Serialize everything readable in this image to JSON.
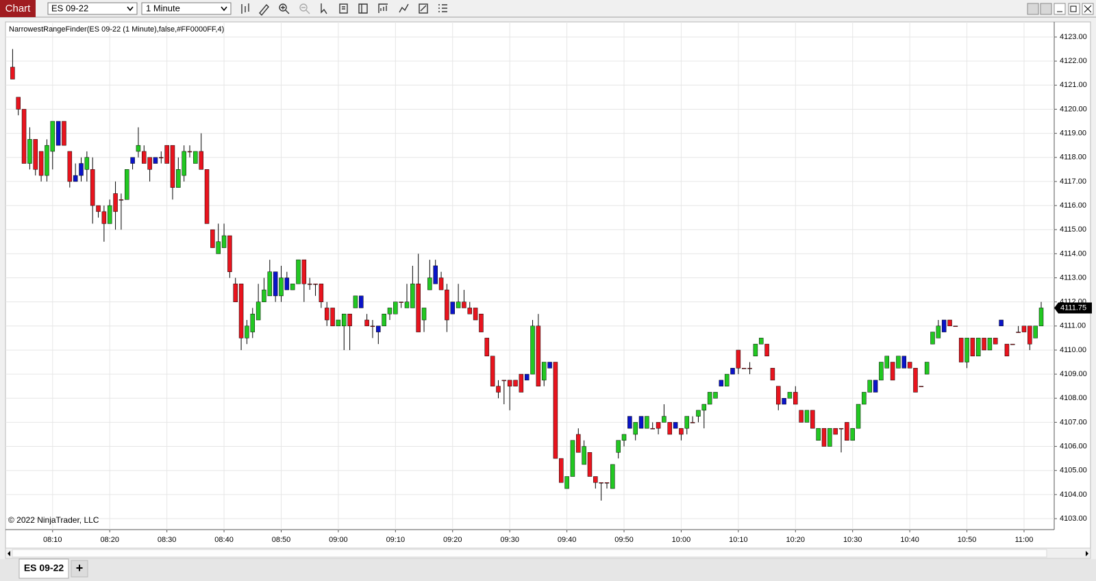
{
  "ui": {
    "app_title": "Chart",
    "instrument": "ES 09-22",
    "interval": "1 Minute",
    "indicator_label": "NarrowestRangeFinder(ES 09-22 (1 Minute),false,#FF0000FF,4)",
    "copyright": "© 2022 NinjaTrader, LLC",
    "tab": "ES 09-22",
    "add_tab": "+"
  },
  "chart_data": {
    "type": "candlestick",
    "up_color": "#22c822",
    "down_color": "#e8141e",
    "highlight_color": "#0a14c8",
    "wick_color": "#000000",
    "grid": true,
    "ylim": [
      4103,
      4123
    ],
    "yticks": [
      {
        "value": 4103,
        "label": "4103.00"
      },
      {
        "value": 4104,
        "label": "4104.00"
      },
      {
        "value": 4105,
        "label": "4105.00"
      },
      {
        "value": 4106,
        "label": "4106.00"
      },
      {
        "value": 4107,
        "label": "4107.00"
      },
      {
        "value": 4108,
        "label": "4108.00"
      },
      {
        "value": 4109,
        "label": "4109.00"
      },
      {
        "value": 4110,
        "label": "4110.00"
      },
      {
        "value": 4111,
        "label": "4111.00"
      },
      {
        "value": 4112,
        "label": "4112.00"
      },
      {
        "value": 4113,
        "label": "4113.00"
      },
      {
        "value": 4114,
        "label": "4114.00"
      },
      {
        "value": 4115,
        "label": "4115.00"
      },
      {
        "value": 4116,
        "label": "4116.00"
      },
      {
        "value": 4117,
        "label": "4117.00"
      },
      {
        "value": 4118,
        "label": "4118.00"
      },
      {
        "value": 4119,
        "label": "4119.00"
      },
      {
        "value": 4120,
        "label": "4120.00"
      },
      {
        "value": 4121,
        "label": "4121.00"
      },
      {
        "value": 4122,
        "label": "4122.00"
      },
      {
        "value": 4123,
        "label": "4123.00"
      }
    ],
    "last_price": 4111.75,
    "highlight": [
      8,
      11,
      12,
      21,
      25,
      46,
      48,
      61,
      64,
      74,
      77,
      90,
      94,
      108,
      110,
      116,
      124,
      126,
      135,
      151,
      156,
      163,
      173
    ],
    "categories": [
      null,
      null,
      null,
      null,
      null,
      null,
      null,
      "08:10",
      null,
      null,
      null,
      null,
      null,
      null,
      null,
      null,
      null,
      "08:20",
      null,
      null,
      null,
      null,
      null,
      null,
      null,
      null,
      null,
      "08:30",
      null,
      null,
      null,
      null,
      null,
      null,
      null,
      null,
      null,
      "08:40",
      null,
      null,
      null,
      null,
      null,
      null,
      null,
      null,
      null,
      "08:50",
      null,
      null,
      null,
      null,
      null,
      null,
      null,
      null,
      null,
      "09:00",
      null,
      null,
      null,
      null,
      null,
      null,
      null,
      null,
      null,
      "09:10",
      null,
      null,
      null,
      null,
      null,
      null,
      null,
      null,
      null,
      "09:20",
      null,
      null,
      null,
      null,
      null,
      null,
      null,
      null,
      null,
      "09:30",
      null,
      null,
      null,
      null,
      null,
      null,
      null,
      null,
      null,
      "09:40",
      null,
      null,
      null,
      null,
      null,
      null,
      null,
      null,
      null,
      "09:50",
      null,
      null,
      null,
      null,
      null,
      null,
      null,
      null,
      null,
      "10:00",
      null,
      null,
      null,
      null,
      null,
      null,
      null,
      null,
      null,
      "10:10",
      null,
      null,
      null,
      null,
      null,
      null,
      null,
      null,
      null,
      "10:20",
      null,
      null,
      null,
      null,
      null,
      null,
      null,
      null,
      null,
      "10:30",
      null,
      null,
      null,
      null,
      null,
      null,
      null,
      null,
      null,
      "10:40",
      null,
      null,
      null,
      null,
      null,
      null,
      null,
      null,
      null,
      "10:50",
      null,
      null,
      null,
      null,
      null,
      null,
      null,
      null,
      null,
      "11:00",
      null,
      null,
      null
    ],
    "values": [
      [
        4121.75,
        4122.5,
        4121.25,
        4121.25
      ],
      [
        4120.5,
        4120.5,
        4119.75,
        4120
      ],
      [
        4120,
        4120,
        4117.75,
        4117.75
      ],
      [
        4117.75,
        4119.25,
        4117.5,
        4118.75
      ],
      [
        4118.75,
        4118.75,
        4117.25,
        4117.5
      ],
      [
        4118.25,
        4118.25,
        4117,
        4117.25
      ],
      [
        4117.25,
        4118.75,
        4117,
        4118.5
      ],
      [
        4118.25,
        4119.5,
        4117.5,
        4119.5
      ],
      [
        4119.5,
        4119.5,
        4118.5,
        4118.5
      ],
      [
        4119.5,
        4119.5,
        4118.5,
        4118.5
      ],
      [
        4118.25,
        4118.25,
        4116.75,
        4117
      ],
      [
        4117.25,
        4117.75,
        4117,
        4117
      ],
      [
        4117.75,
        4118,
        4117,
        4117.25
      ],
      [
        4117.5,
        4118.25,
        4117,
        4118
      ],
      [
        4117.5,
        4118,
        4115.25,
        4116
      ],
      [
        4116,
        4116,
        4115.5,
        4115.75
      ],
      [
        4115.75,
        4116,
        4114.5,
        4115.25
      ],
      [
        4115.25,
        4116.25,
        4115.25,
        4116
      ],
      [
        4116.5,
        4117,
        4115,
        4115.75
      ],
      [
        4116.25,
        4116.5,
        4115,
        4116.25
      ],
      [
        4116.25,
        4117.5,
        4116.25,
        4117.5
      ],
      [
        4118,
        4118,
        4117.5,
        4117.75
      ],
      [
        4118.25,
        4119.25,
        4118,
        4118.5
      ],
      [
        4118.25,
        4118.5,
        4117.75,
        4117.75
      ],
      [
        4118,
        4118,
        4117,
        4117.5
      ],
      [
        4118,
        4118,
        4117.75,
        4117.75
      ],
      [
        4118,
        4118.25,
        4117.75,
        4118
      ],
      [
        4118.5,
        4118.5,
        4117.75,
        4117.75
      ],
      [
        4118.5,
        4118.5,
        4116.25,
        4116.75
      ],
      [
        4116.75,
        4118,
        4116.75,
        4117.5
      ],
      [
        4117.25,
        4118.5,
        4117,
        4118.25
      ],
      [
        4118.25,
        4118.5,
        4118,
        4118.25
      ],
      [
        4117.75,
        4118.25,
        4117.75,
        4118.25
      ],
      [
        4118.25,
        4119,
        4117.5,
        4117.5
      ],
      [
        4117.5,
        4117.5,
        4115.25,
        4115.25
      ],
      [
        4115,
        4115,
        4114.25,
        4114.25
      ],
      [
        4114,
        4115.25,
        4114,
        4114.5
      ],
      [
        4114.25,
        4115.25,
        4114.25,
        4114.75
      ],
      [
        4114.75,
        4114.75,
        4113,
        4113.25
      ],
      [
        4112.75,
        4113,
        4112,
        4112
      ],
      [
        4112.75,
        4112.75,
        4110,
        4110.5
      ],
      [
        4110.5,
        4111.25,
        4110.25,
        4111
      ],
      [
        4110.75,
        4111.75,
        4110.5,
        4111.5
      ],
      [
        4111.25,
        4112.75,
        4111.25,
        4112
      ],
      [
        4112,
        4113,
        4112,
        4112.5
      ],
      [
        4112.25,
        4113.75,
        4112.25,
        4113.25
      ],
      [
        4113.25,
        4113.25,
        4112,
        4112.25
      ],
      [
        4112.25,
        4113.5,
        4112,
        4113
      ],
      [
        4113,
        4113.25,
        4112.5,
        4112.5
      ],
      [
        4112.5,
        4112.75,
        4112.5,
        4112.75
      ],
      [
        4112.75,
        4113.75,
        4112.75,
        4113.75
      ],
      [
        4113.75,
        4113.75,
        4112,
        4112.75
      ],
      [
        4112.75,
        4113,
        4112.5,
        4112.75
      ],
      [
        4112.75,
        4112.75,
        4112.25,
        4112.75
      ],
      [
        4112.75,
        4112.75,
        4111.75,
        4112
      ],
      [
        4111.75,
        4112,
        4111,
        4111.25
      ],
      [
        4111.75,
        4111.75,
        4111,
        4111
      ],
      [
        4111,
        4111.25,
        4111,
        4111.25
      ],
      [
        4111,
        4111.5,
        4110,
        4111.5
      ],
      [
        4111.5,
        4111.5,
        4110,
        4111
      ],
      [
        4111.75,
        4112.25,
        4111.75,
        4112.25
      ],
      [
        4112.25,
        4112.25,
        4111.75,
        4111.75
      ],
      [
        4111.25,
        4111.5,
        4111,
        4111
      ],
      [
        4111,
        4111.25,
        4110.5,
        4111
      ],
      [
        4111,
        4111,
        4110.25,
        4110.75
      ],
      [
        4111,
        4111.5,
        4111,
        4111.5
      ],
      [
        4111.5,
        4111.75,
        4111.25,
        4111.75
      ],
      [
        4111.5,
        4112,
        4111.5,
        4112
      ],
      [
        4112,
        4112,
        4111.75,
        4112
      ],
      [
        4111.75,
        4112.75,
        4111.75,
        4112
      ],
      [
        4111.75,
        4113.5,
        4111.75,
        4112.75
      ],
      [
        4112.75,
        4114,
        4110.75,
        4110.75
      ],
      [
        4111.25,
        4111.75,
        4110.75,
        4111.75
      ],
      [
        4112.5,
        4113.75,
        4112.5,
        4113
      ],
      [
        4113.5,
        4113.75,
        4112.75,
        4112.75
      ],
      [
        4113,
        4113.25,
        4112.5,
        4112.5
      ],
      [
        4112.5,
        4112.75,
        4110.75,
        4111.25
      ],
      [
        4112,
        4112,
        4111.5,
        4111.5
      ],
      [
        4111.75,
        4112.75,
        4111.75,
        4112
      ],
      [
        4112,
        4112.5,
        4111.75,
        4111.75
      ],
      [
        4111.75,
        4112,
        4111.5,
        4111.5
      ],
      [
        4111.75,
        4111.75,
        4111.25,
        4111.25
      ],
      [
        4111.5,
        4111.5,
        4110.75,
        4110.75
      ],
      [
        4110.5,
        4110.5,
        4109.75,
        4109.75
      ],
      [
        4109.75,
        4109.75,
        4108.5,
        4108.5
      ],
      [
        4108.5,
        4108.75,
        4108,
        4108.25
      ],
      [
        4108.75,
        4108.75,
        4107.75,
        4108.75
      ],
      [
        4108.75,
        4108.75,
        4107.5,
        4108.5
      ],
      [
        4108.75,
        4108.75,
        4108.5,
        4108.5
      ],
      [
        4109,
        4109,
        4108.25,
        4108.25
      ],
      [
        4109,
        4109,
        4108.75,
        4108.75
      ],
      [
        4109,
        4111.25,
        4109,
        4111
      ],
      [
        4111,
        4111.5,
        4108.5,
        4108.5
      ],
      [
        4108.75,
        4109.5,
        4108.5,
        4109.5
      ],
      [
        4109.5,
        4109.5,
        4109.25,
        4109.25
      ],
      [
        4109.5,
        4109.5,
        4105.5,
        4105.5
      ],
      [
        4105.5,
        4105.5,
        4104.5,
        4104.5
      ],
      [
        4104.25,
        4104.75,
        4104.25,
        4104.75
      ],
      [
        4104.75,
        4106.25,
        4104.75,
        4106.25
      ],
      [
        4106.5,
        4106.75,
        4105.75,
        4105.75
      ],
      [
        4105.25,
        4106.25,
        4105.25,
        4106
      ],
      [
        4105.75,
        4105.75,
        4104.75,
        4104.75
      ],
      [
        4104.75,
        4104.75,
        4104.25,
        4104.5
      ],
      [
        4104.5,
        4104.5,
        4103.75,
        4104.5
      ],
      [
        4104.5,
        4104.5,
        4104.25,
        4104.5
      ],
      [
        4104.25,
        4105.25,
        4104.25,
        4105.25
      ],
      [
        4105.75,
        4106.25,
        4105.5,
        4106.25
      ],
      [
        4106.25,
        4106.5,
        4106,
        4106.5
      ],
      [
        4107.25,
        4107.25,
        4106.75,
        4106.75
      ],
      [
        4106.5,
        4107,
        4106.25,
        4107
      ],
      [
        4107.25,
        4107.25,
        4106.75,
        4106.75
      ],
      [
        4106.75,
        4107.25,
        4106.75,
        4107.25
      ],
      [
        4106.75,
        4107,
        4106.75,
        4106.75
      ],
      [
        4107,
        4107,
        4106.5,
        4106.75
      ],
      [
        4107,
        4107.75,
        4107,
        4107.25
      ],
      [
        4107,
        4107,
        4106.5,
        4106.5
      ],
      [
        4107,
        4107,
        4106.75,
        4106.75
      ],
      [
        4106.75,
        4106.75,
        4106.25,
        4106.5
      ],
      [
        4106.75,
        4107.25,
        4106.5,
        4107.25
      ],
      [
        4107,
        4107.25,
        4107,
        4107
      ],
      [
        4107.25,
        4107.5,
        4107,
        4107.5
      ],
      [
        4107.5,
        4107.75,
        4106.75,
        4107.75
      ],
      [
        4107.75,
        4108.25,
        4107.75,
        4108.25
      ],
      [
        4108,
        4108.25,
        4108,
        4108.25
      ],
      [
        4108.75,
        4108.75,
        4108.5,
        4108.5
      ],
      [
        4108.5,
        4109,
        4108.5,
        4109
      ],
      [
        4109.25,
        4109.25,
        4109,
        4109
      ],
      [
        4110,
        4110,
        4109,
        4109.25
      ],
      [
        4109.25,
        4109.25,
        4109.25,
        4109.25
      ],
      [
        4109.25,
        4109.5,
        4109,
        4109.25
      ],
      [
        4109.75,
        4110.25,
        4109.75,
        4110.25
      ],
      [
        4110.25,
        4110.5,
        4110.25,
        4110.5
      ],
      [
        4110.25,
        4110.25,
        4109.75,
        4109.75
      ],
      [
        4109.25,
        4109.25,
        4108.75,
        4108.75
      ],
      [
        4108.5,
        4108.5,
        4107.5,
        4107.75
      ],
      [
        4108,
        4108,
        4107.75,
        4107.75
      ],
      [
        4108,
        4108.25,
        4108,
        4108.25
      ],
      [
        4108.25,
        4108.5,
        4107.75,
        4107.75
      ],
      [
        4107.5,
        4107.5,
        4107,
        4107
      ],
      [
        4107,
        4107.5,
        4107,
        4107.5
      ],
      [
        4107.5,
        4107.5,
        4106.75,
        4106.75
      ],
      [
        4106.25,
        4106.75,
        4106.25,
        4106.75
      ],
      [
        4106.75,
        4106.75,
        4106,
        4106
      ],
      [
        4106,
        4106.75,
        4106,
        4106.75
      ],
      [
        4106.75,
        4106.75,
        4106.5,
        4106.5
      ],
      [
        4106.75,
        4106.75,
        4105.75,
        4106.75
      ],
      [
        4107,
        4107,
        4106.25,
        4106.25
      ],
      [
        4106.25,
        4106.75,
        4106.25,
        4106.75
      ],
      [
        4106.75,
        4107.75,
        4106.75,
        4107.75
      ],
      [
        4107.75,
        4108.25,
        4107.75,
        4108.25
      ],
      [
        4108.25,
        4108.75,
        4108.25,
        4108.75
      ],
      [
        4108.75,
        4108.75,
        4108.25,
        4108.25
      ],
      [
        4108.75,
        4109.5,
        4108.75,
        4109.5
      ],
      [
        4109.25,
        4109.75,
        4109.25,
        4109.75
      ],
      [
        4109.5,
        4109.5,
        4108.75,
        4108.75
      ],
      [
        4109.25,
        4109.75,
        4109.25,
        4109.75
      ],
      [
        4109.75,
        4109.75,
        4109.25,
        4109.25
      ],
      [
        4109.5,
        4109.5,
        4109.25,
        4109.25
      ],
      [
        4109.25,
        4109.25,
        4108.25,
        4108.25
      ],
      [
        4108.5,
        4108.5,
        4108.5,
        4108.5
      ],
      [
        4109,
        4109.5,
        4109,
        4109.5
      ],
      [
        4110.25,
        4110.75,
        4110.25,
        4110.75
      ],
      [
        4110.5,
        4111.25,
        4110.5,
        4111
      ],
      [
        4111.25,
        4111.25,
        4110.75,
        4110.75
      ],
      [
        4111.25,
        4111.25,
        4111,
        4111
      ],
      [
        4111,
        4111,
        4111,
        4111
      ],
      [
        4110.5,
        4110.5,
        4109.5,
        4109.5
      ],
      [
        4109.5,
        4110.5,
        4109.25,
        4110.5
      ],
      [
        4110.5,
        4110.5,
        4109.75,
        4109.75
      ],
      [
        4109.75,
        4110.5,
        4109.75,
        4110.5
      ],
      [
        4110.5,
        4110.5,
        4110,
        4110
      ],
      [
        4110,
        4110.5,
        4110,
        4110.5
      ],
      [
        4110.5,
        4110.5,
        4110.25,
        4110.25
      ],
      [
        4111.25,
        4111.25,
        4111,
        4111
      ],
      [
        4110.25,
        4110.25,
        4109.75,
        4109.75
      ],
      [
        4110.25,
        4110.25,
        4110.25,
        4110.25
      ],
      [
        4110.75,
        4111,
        4110.75,
        4110.75
      ],
      [
        4111,
        4111,
        4110.75,
        4110.75
      ],
      [
        4111,
        4111,
        4110,
        4110.25
      ],
      [
        4110.5,
        4111,
        4110.5,
        4111
      ],
      [
        4111,
        4112,
        4111,
        4111.75
      ]
    ]
  }
}
